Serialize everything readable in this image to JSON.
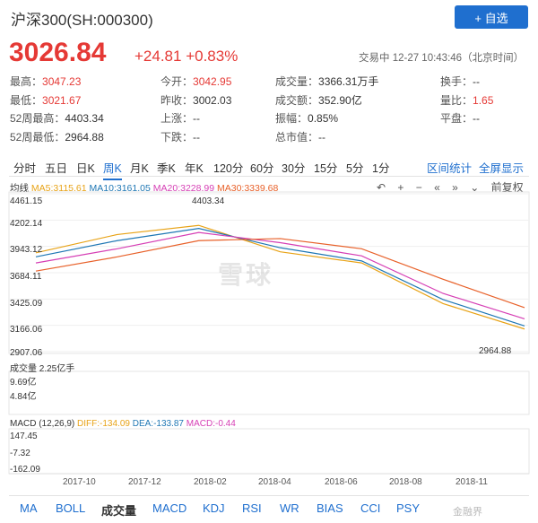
{
  "header": {
    "title": "沪深300(SH:000300)",
    "watch_button": "+ 自选"
  },
  "quote": {
    "price": "3026.84",
    "change": "+24.81 +0.83%",
    "status": "交易中 12-27 10:43:46（北京时间）"
  },
  "stats": [
    [
      {
        "label": "最高：",
        "value": "3047.23",
        "color": "red"
      },
      {
        "label": "今开：",
        "value": "3042.95",
        "color": "red"
      },
      {
        "label": "成交量：",
        "value": "3366.31万手",
        "color": "normal"
      },
      {
        "label": "换手：",
        "value": "--",
        "color": "normal"
      }
    ],
    [
      {
        "label": "最低：",
        "value": "3021.67",
        "color": "red"
      },
      {
        "label": "昨收：",
        "value": "3002.03",
        "color": "normal"
      },
      {
        "label": "成交额：",
        "value": "352.90亿",
        "color": "normal"
      },
      {
        "label": "量比：",
        "value": "1.65",
        "color": "red"
      }
    ],
    [
      {
        "label": "52周最高：",
        "value": "4403.34",
        "color": "normal"
      },
      {
        "label": "上涨：",
        "value": "--",
        "color": "normal"
      },
      {
        "label": "振幅：",
        "value": "0.85%",
        "color": "normal"
      },
      {
        "label": "平盘：",
        "value": "--",
        "color": "normal"
      }
    ],
    [
      {
        "label": "52周最低：",
        "value": "2964.88",
        "color": "normal"
      },
      {
        "label": "下跌：",
        "value": "--",
        "color": "normal"
      },
      {
        "label": "总市值：",
        "value": "--",
        "color": "normal"
      },
      {
        "label": "",
        "value": "",
        "color": "normal"
      }
    ]
  ],
  "period_tabs": [
    "分时",
    "五日",
    "日K",
    "周K",
    "月K",
    "季K",
    "年K",
    "120分",
    "60分",
    "30分",
    "15分",
    "5分",
    "1分"
  ],
  "active_period": "周K",
  "chart_links": {
    "interval_stats": "区间统计",
    "fullscreen": "全屏显示"
  },
  "chart_tools": {
    "restore_adjust": "前复权"
  },
  "ma_legend": {
    "label": "均线",
    "ma5": "MA5:3115.61",
    "ma10": "MA10:3161.05",
    "ma20": "MA20:3228.99",
    "ma30": "MA30:3339.68",
    "colors": {
      "ma5": "#e8a317",
      "ma10": "#1f77b4",
      "ma20": "#d63fb5",
      "ma30": "#e8612a"
    }
  },
  "price_axis": [
    "4461.15",
    "4202.14",
    "3943.12",
    "3684.11",
    "3425.09",
    "3166.06",
    "2907.06"
  ],
  "price_annotations": {
    "high": "4403.34",
    "low": "2964.88"
  },
  "volume_legend": "成交量 2.25亿手",
  "volume_axis": [
    "9.69亿",
    "4.84亿"
  ],
  "macd_legend": {
    "label": "MACD (12,26,9)",
    "diff": "DIFF:-134.09",
    "dea": "DEA:-133.87",
    "macd": "MACD:-0.44"
  },
  "macd_axis": [
    "147.45",
    "-7.32",
    "-162.09"
  ],
  "x_axis": [
    "2017-10",
    "2017-12",
    "2018-02",
    "2018-04",
    "2018-06",
    "2018-08",
    "2018-11"
  ],
  "watermark": "雪球",
  "indicator_tabs": [
    "MA",
    "BOLL",
    "成交量",
    "MACD",
    "KDJ",
    "RSI",
    "WR",
    "BIAS",
    "CCI",
    "PSY"
  ],
  "active_indicator": "成交量",
  "corner_mark": "金融界",
  "chart_data": {
    "type": "line",
    "title": "",
    "x": [
      "2017-10",
      "2017-12",
      "2018-02",
      "2018-04",
      "2018-06",
      "2018-08",
      "2018-11"
    ],
    "series": [
      {
        "name": "MA5",
        "values": [
          3880,
          4060,
          4150,
          3890,
          3780,
          3380,
          3130
        ]
      },
      {
        "name": "MA10",
        "values": [
          3840,
          4000,
          4120,
          3930,
          3800,
          3420,
          3160
        ]
      },
      {
        "name": "MA20",
        "values": [
          3780,
          3920,
          4080,
          3980,
          3850,
          3480,
          3230
        ]
      },
      {
        "name": "MA30",
        "values": [
          3700,
          3840,
          4000,
          4020,
          3920,
          3620,
          3340
        ]
      }
    ],
    "ylim": [
      2907.06,
      4461.15
    ]
  }
}
